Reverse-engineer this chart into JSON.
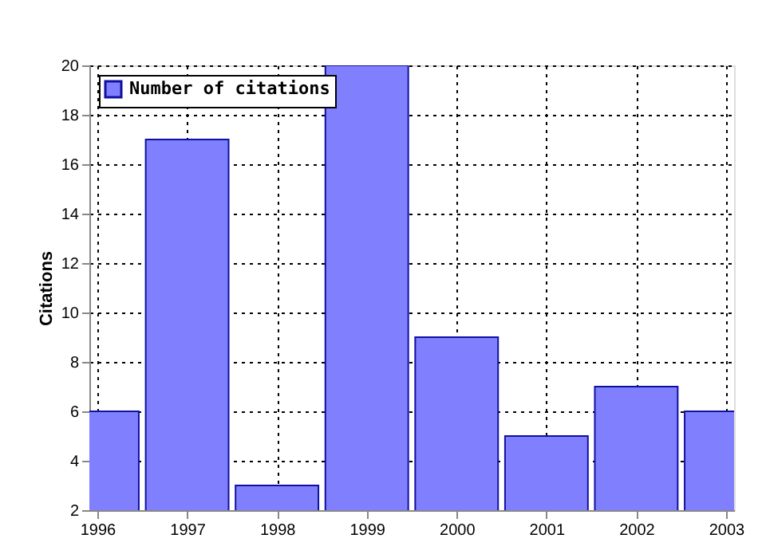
{
  "chart_data": {
    "type": "bar",
    "ylabel": "Citations",
    "x": [
      1996,
      1997,
      1998,
      1999,
      2000,
      2001,
      2002,
      2003
    ],
    "series": [
      {
        "name": "Number of citations",
        "color": "#8080ff",
        "values": [
          6,
          17,
          3,
          20,
          9,
          5,
          7,
          6
        ]
      }
    ],
    "xlim": [
      1996,
      2003
    ],
    "xticks": [
      1996,
      1997,
      1998,
      1999,
      2000,
      2001,
      2002,
      2003
    ],
    "ylim": [
      2,
      20
    ],
    "yticks": [
      2,
      4,
      6,
      8,
      10,
      12,
      14,
      16,
      18,
      20
    ],
    "grid": true,
    "legend": "top left"
  }
}
